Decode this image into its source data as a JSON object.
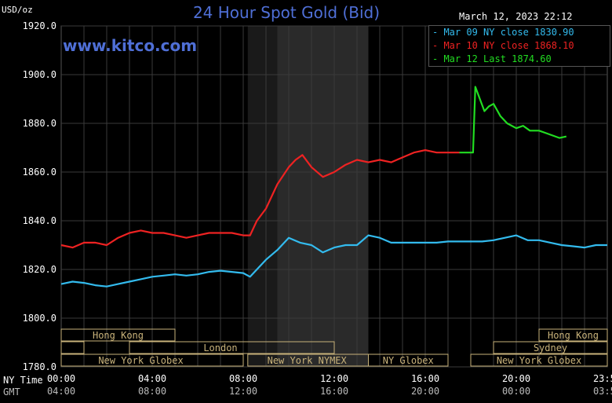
{
  "chart_data": {
    "type": "line",
    "title": "24 Hour Spot Gold (Bid)",
    "ylabel": "USD/oz",
    "timestamp": "March 12, 2023 22:12",
    "watermark": "www.kitco.com",
    "ylim": [
      1780,
      1920
    ],
    "yticks": [
      "1920.0",
      "1900.0",
      "1880.0",
      "1860.0",
      "1840.0",
      "1820.0",
      "1800.0",
      "1780.0"
    ],
    "xlim": [
      0,
      24
    ],
    "ny_time_label": "NY Time",
    "gmt_label": "GMT",
    "ny_ticks": [
      "00:00",
      "04:00",
      "08:00",
      "12:00",
      "16:00",
      "20:00",
      "23:59"
    ],
    "gmt_ticks": [
      "04:00",
      "08:00",
      "12:00",
      "16:00",
      "20:00",
      "00:00",
      "03:59"
    ],
    "legend_position": "top-right",
    "colors": {
      "mar09": "#33bbee",
      "mar10": "#ee2222",
      "mar12": "#22dd22",
      "title": "#4f6fd6"
    },
    "series": [
      {
        "name": "Mar 09 NY close 1830.90",
        "x": [
          0,
          0.5,
          1,
          1.5,
          2,
          2.5,
          3,
          3.5,
          4,
          4.5,
          5,
          5.5,
          6,
          6.5,
          7,
          7.5,
          8,
          8.3,
          8.6,
          9,
          9.5,
          10,
          10.5,
          11,
          11.5,
          12,
          12.5,
          13,
          13.5,
          14,
          14.5,
          15,
          15.5,
          16,
          16.5,
          17,
          17.5,
          18,
          18.5,
          19,
          19.5,
          20,
          20.5,
          21,
          21.5,
          22,
          22.5,
          23,
          23.5,
          24
        ],
        "values": [
          1814,
          1815,
          1814.5,
          1813.5,
          1813,
          1814,
          1815,
          1816,
          1817,
          1817.5,
          1818,
          1817.5,
          1818,
          1819,
          1819.5,
          1819,
          1818.5,
          1817,
          1820,
          1824,
          1828,
          1833,
          1831,
          1830,
          1827,
          1829,
          1830,
          1830,
          1834,
          1833,
          1831,
          1831,
          1831,
          1831,
          1831,
          1831.5,
          1831.5,
          1831.5,
          1831.5,
          1832,
          1833,
          1834,
          1832,
          1832,
          1831,
          1830,
          1829.5,
          1829,
          1830,
          1830
        ]
      },
      {
        "name": "Mar 10 NY close 1868.10",
        "x": [
          0,
          0.5,
          1,
          1.5,
          2,
          2.5,
          3,
          3.5,
          4,
          4.5,
          5,
          5.5,
          6,
          6.5,
          7,
          7.5,
          8,
          8.3,
          8.6,
          9,
          9.5,
          10,
          10.3,
          10.6,
          11,
          11.5,
          12,
          12.5,
          13,
          13.5,
          14,
          14.5,
          15,
          15.5,
          16,
          16.5,
          17,
          17.5
        ],
        "values": [
          1830,
          1829,
          1831,
          1831,
          1830,
          1833,
          1835,
          1836,
          1835,
          1835,
          1834,
          1833,
          1834,
          1835,
          1835,
          1835,
          1834,
          1834,
          1840,
          1845,
          1855,
          1862,
          1865,
          1867,
          1862,
          1858,
          1860,
          1863,
          1865,
          1864,
          1865,
          1864,
          1866,
          1868,
          1869,
          1868,
          1868,
          1868
        ]
      },
      {
        "name": "Mar 12 Last 1874.60",
        "x": [
          17.5,
          18,
          18.1,
          18.2,
          18.4,
          18.6,
          18.8,
          19,
          19.3,
          19.6,
          20,
          20.3,
          20.6,
          21,
          21.3,
          21.6,
          21.9,
          22.2
        ],
        "values": [
          1868,
          1868,
          1868,
          1895,
          1890,
          1885,
          1887,
          1888,
          1883,
          1880,
          1878,
          1879,
          1877,
          1877,
          1876,
          1875,
          1874,
          1874.6
        ]
      }
    ],
    "sessions": [
      {
        "label": "Hong Kong",
        "start": 0,
        "end": 5,
        "row": 0,
        "label_at": 2.5
      },
      {
        "label": "",
        "start": 0,
        "end": 1,
        "row": 1,
        "label_at": 0.5
      },
      {
        "label": "London",
        "start": 3,
        "end": 12,
        "row": 1,
        "label_at": 7
      },
      {
        "label": "New York Globex",
        "start": 0,
        "end": 8,
        "row": 2,
        "label_at": 3.5
      },
      {
        "label": "New York NYMEX",
        "start": 8.2,
        "end": 13.5,
        "row": 2,
        "label_at": 10.8
      },
      {
        "label": "NY Globex",
        "start": 13.5,
        "end": 17,
        "row": 2,
        "label_at": 15.25
      },
      {
        "label": "Hong Kong",
        "start": 21,
        "end": 24,
        "row": 0,
        "label_at": 22.5
      },
      {
        "label": "Sydney",
        "start": 19,
        "end": 24,
        "row": 1,
        "label_at": 21.5
      },
      {
        "label": "New York Globex",
        "start": 18,
        "end": 24,
        "row": 2,
        "label_at": 21
      }
    ]
  }
}
